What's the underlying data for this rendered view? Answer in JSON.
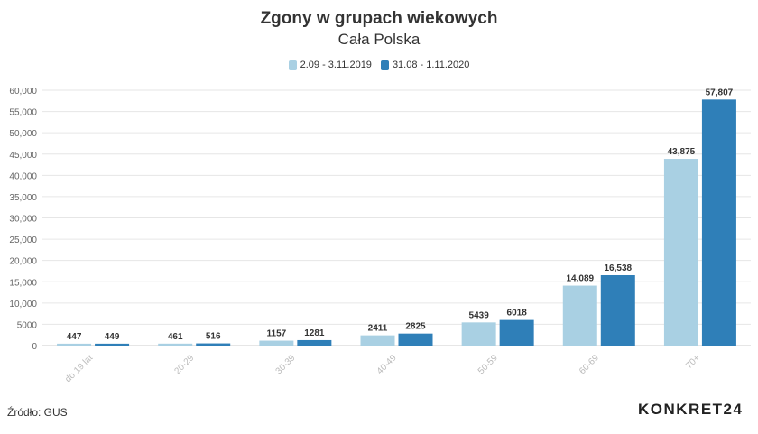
{
  "chart_data": {
    "type": "bar",
    "title": "Zgony w grupach wiekowych",
    "subtitle": "Cała Polska",
    "categories": [
      "do 19 lat",
      "20-29",
      "30-39",
      "40-49",
      "50-59",
      "60-69",
      "70+"
    ],
    "series": [
      {
        "name": "2.09 - 3.11.2019",
        "color": "#a9d0e3",
        "values": [
          447,
          461,
          1157,
          2411,
          5439,
          14089,
          43875
        ],
        "labels": [
          "447",
          "461",
          "1157",
          "2411",
          "5439",
          "14,089",
          "43,875"
        ]
      },
      {
        "name": "31.08 - 1.11.2020",
        "color": "#2f7fb8",
        "values": [
          449,
          516,
          1281,
          2825,
          6018,
          16538,
          57807
        ],
        "labels": [
          "449",
          "516",
          "1281",
          "2825",
          "6018",
          "16,538",
          "57,807"
        ]
      }
    ],
    "yticks": [
      0,
      5000,
      10000,
      15000,
      20000,
      25000,
      30000,
      35000,
      40000,
      45000,
      50000,
      55000,
      60000
    ],
    "ytick_labels": [
      "0",
      "5000",
      "10,000",
      "15,000",
      "20,000",
      "25,000",
      "30,000",
      "35,000",
      "40,000",
      "45,000",
      "50,000",
      "55,000",
      "60,000"
    ],
    "ylim": [
      0,
      60000
    ],
    "grid": true,
    "legend_position": "top-center"
  },
  "footer": {
    "source": "Źródło: GUS",
    "logo": "KONKRET24"
  }
}
